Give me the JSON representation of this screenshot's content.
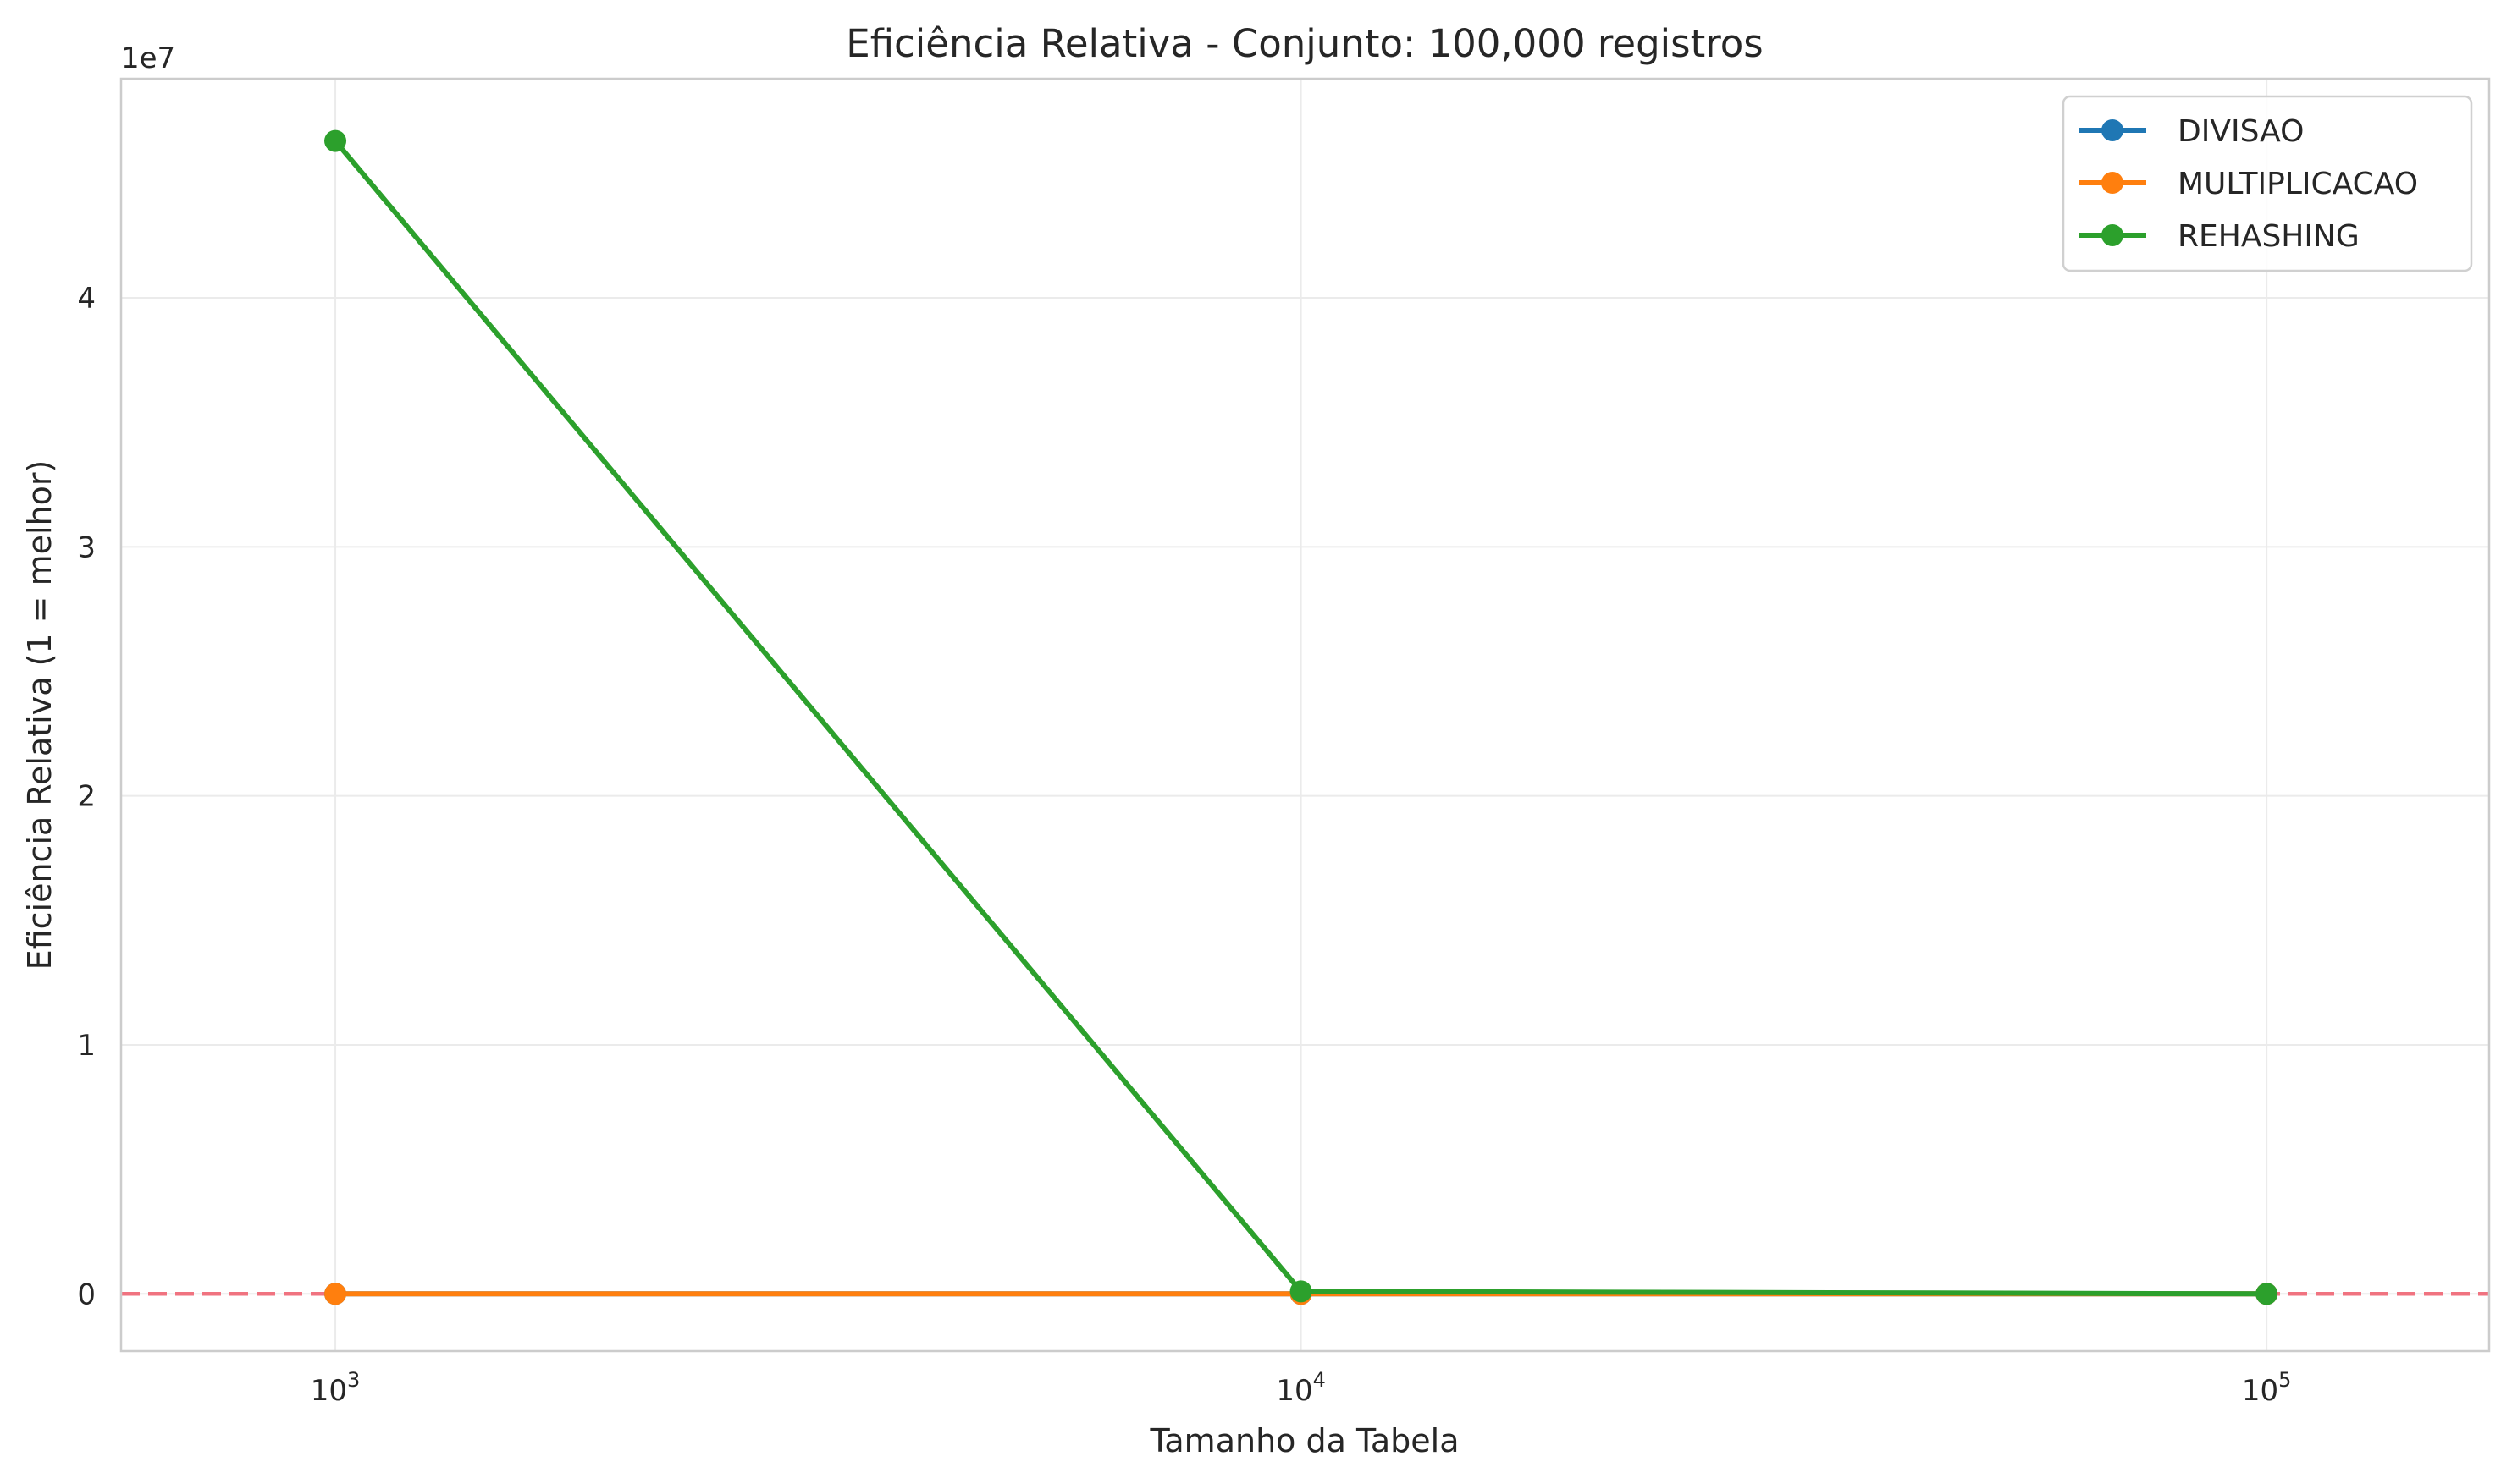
{
  "chart_data": {
    "type": "line",
    "title": "Eficiência Relativa - Conjunto: 100,000 registros",
    "xlabel": "Tamanho da Tabela",
    "ylabel": "Eficiência Relativa (1 = melhor)",
    "x_scale": "log",
    "x": [
      1000,
      10000,
      100000
    ],
    "x_ticks": [
      1000,
      10000,
      100000
    ],
    "x_tick_labels": [
      {
        "base": "10",
        "exp": "3"
      },
      {
        "base": "10",
        "exp": "4"
      },
      {
        "base": "10",
        "exp": "5"
      }
    ],
    "xlim": [
      600,
      170000
    ],
    "y_ticks": [
      0,
      10000000,
      20000000,
      30000000,
      40000000
    ],
    "y_tick_labels": [
      "0",
      "1",
      "2",
      "3",
      "4"
    ],
    "y_offset_label": "1e7",
    "ylim": [
      -2300000,
      48800000
    ],
    "reference_line": {
      "y": 1,
      "color": "#f07380",
      "style": "dashed"
    },
    "series": [
      {
        "name": "DIVISAO",
        "color": "#1f77b4",
        "values": [
          1,
          1,
          1
        ]
      },
      {
        "name": "MULTIPLICACAO",
        "color": "#ff7f0e",
        "values": [
          1,
          1,
          1
        ]
      },
      {
        "name": "REHASHING",
        "color": "#2ca02c",
        "values": [
          46300000,
          100000,
          1
        ]
      }
    ],
    "legend_position": "top-right",
    "grid": true
  }
}
